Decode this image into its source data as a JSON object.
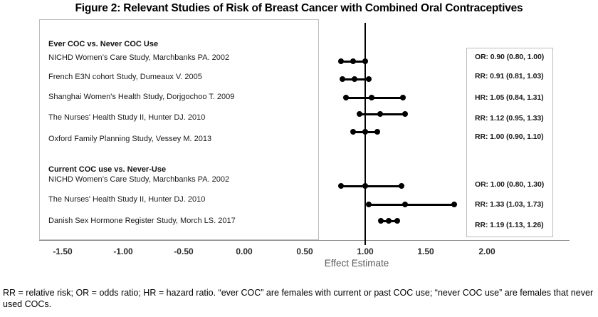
{
  "chart_data": {
    "type": "scatter",
    "variant": "forest-plot",
    "title": "Figure 2: Relevant Studies of Risk of Breast Cancer with Combined Oral Contraceptives",
    "xlabel": "Effect Estimate",
    "ylabel": "",
    "x_ticks": [
      -1.5,
      -1.0,
      -0.5,
      0.0,
      0.5,
      1.0,
      1.5,
      2.0
    ],
    "x_tick_labels": [
      "-1.50",
      "-1.00",
      "-0.50",
      "0.00",
      "0.50",
      "1.00",
      "1.50",
      "2.00"
    ],
    "xlim": [
      -1.69,
      2.68
    ],
    "reference_line_x": 1.0,
    "grid": false,
    "legend": false,
    "groups": [
      {
        "header": "Ever COC vs. Never COC Use",
        "studies": [
          {
            "label": "NICHD Women’s Care Study, Marchbanks PA. 2002",
            "measure": "OR",
            "estimate": 0.9,
            "ci_low": 0.8,
            "ci_high": 1.0,
            "display": "OR: 0.90 (0.80, 1.00)"
          },
          {
            "label": "French E3N cohort Study, Dumeaux V. 2005",
            "measure": "RR",
            "estimate": 0.91,
            "ci_low": 0.81,
            "ci_high": 1.03,
            "display": "RR: 0.91 (0.81, 1.03)"
          },
          {
            "label": "Shanghai Women's Health Study, Dorjgochoo T. 2009",
            "measure": "HR",
            "estimate": 1.05,
            "ci_low": 0.84,
            "ci_high": 1.31,
            "display": "HR: 1.05 (0.84, 1.31)"
          },
          {
            "label": "The Nurses' Health Study II, Hunter DJ. 2010",
            "measure": "RR",
            "estimate": 1.12,
            "ci_low": 0.95,
            "ci_high": 1.33,
            "display": "RR: 1.12 (0.95, 1.33)"
          },
          {
            "label": "Oxford Family Planning Study, Vessey M. 2013",
            "measure": "RR",
            "estimate": 1.0,
            "ci_low": 0.9,
            "ci_high": 1.1,
            "display": "RR: 1.00 (0.90, 1.10)"
          }
        ]
      },
      {
        "header": "Current COC use vs. Never-Use",
        "studies": [
          {
            "label": "NICHD Women’s Care Study, Marchbanks PA. 2002",
            "measure": "OR",
            "estimate": 1.0,
            "ci_low": 0.8,
            "ci_high": 1.3,
            "display": "OR: 1.00 (0.80, 1.30)"
          },
          {
            "label": "The Nurses' Health Study II, Hunter DJ. 2010",
            "measure": "RR",
            "estimate": 1.33,
            "ci_low": 1.03,
            "ci_high": 1.73,
            "display": "RR: 1.33 (1.03, 1.73)"
          },
          {
            "label": "Danish Sex Hormone Register Study, Morch LS. 2017",
            "measure": "RR",
            "estimate": 1.19,
            "ci_low": 1.13,
            "ci_high": 1.26,
            "display": "RR: 1.19 (1.13, 1.26)"
          }
        ]
      }
    ],
    "colors": {
      "marker": "#000000",
      "reference_line": "#000000",
      "axis_line": "#8a8a8a",
      "box_border": "#bdbdbd",
      "xlabel_text": "#595959"
    }
  },
  "footnote": {
    "text": "RR = relative risk; OR = odds ratio; HR = hazard ratio. “ever COC” are females with current or past COC use; “never COC use” are females that never used COCs."
  }
}
